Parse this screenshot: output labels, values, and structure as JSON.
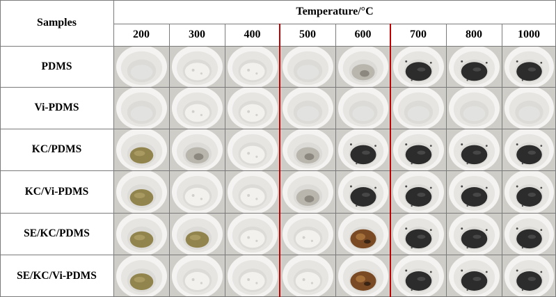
{
  "header": {
    "samples_label": "Samples",
    "temperature_label": "Temperature/°C"
  },
  "temperatures": [
    "200",
    "300",
    "400",
    "500",
    "600",
    "700",
    "800",
    "1000"
  ],
  "samples": [
    "PDMS",
    "Vi-PDMS",
    "KC/PDMS",
    "KC/Vi-PDMS",
    "SE/KC/PDMS",
    "SE/KC/Vi-PDMS"
  ],
  "residue_colors": {
    "clear": "#e4e4e2",
    "white": "#f2f1ee",
    "olive": "#8a7a3e",
    "gray": "#b9b6ae",
    "brown": "#7a4a24",
    "black": "#2c2c2c"
  },
  "cells": [
    [
      "clear",
      "white",
      "white",
      "clear",
      "gray",
      "black",
      "black",
      "black"
    ],
    [
      "clear",
      "white",
      "white",
      "clear",
      "clear",
      "clear",
      "clear",
      "clear"
    ],
    [
      "olive",
      "gray",
      "white",
      "gray",
      "black",
      "black",
      "black",
      "black"
    ],
    [
      "olive",
      "white",
      "white",
      "gray",
      "black",
      "black",
      "black",
      "black"
    ],
    [
      "olive",
      "olive",
      "white",
      "white",
      "brown",
      "black",
      "black",
      "black"
    ],
    [
      "olive",
      "white",
      "white",
      "white",
      "brown",
      "black",
      "black",
      "black"
    ]
  ]
}
